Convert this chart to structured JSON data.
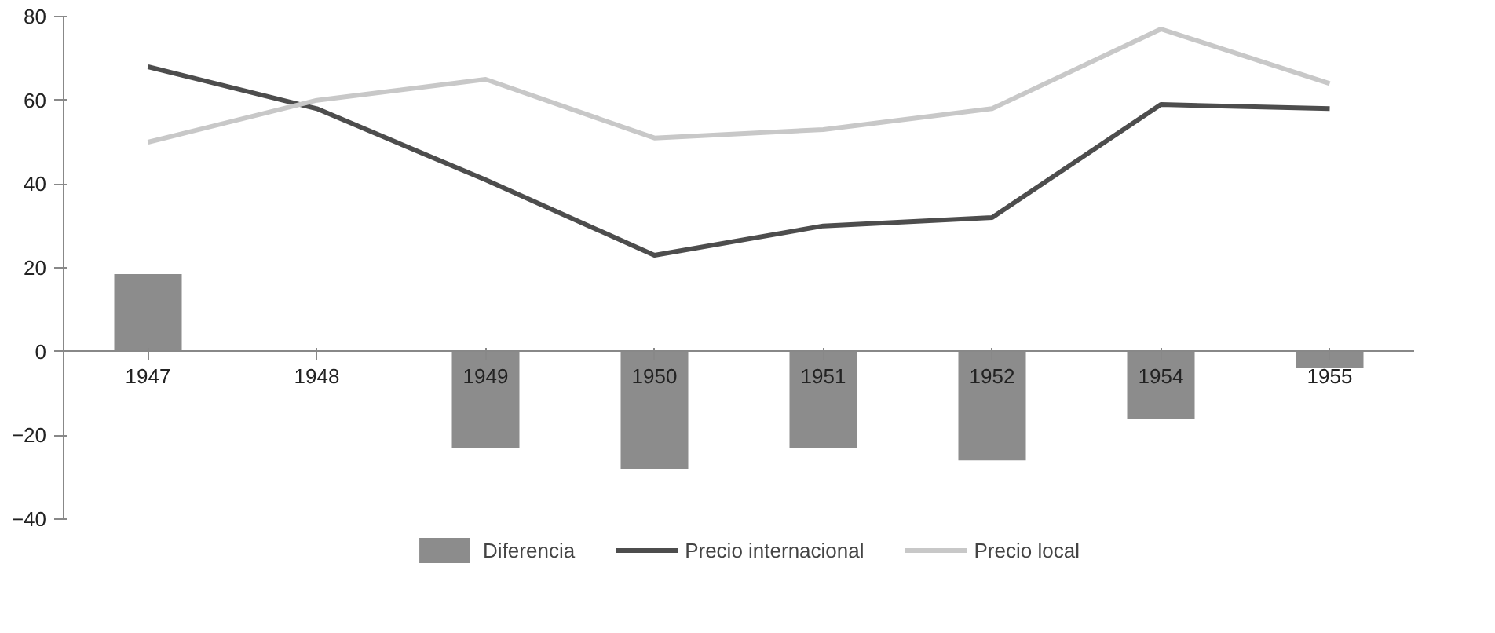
{
  "chart_data": {
    "type": "bar",
    "categories": [
      "1947",
      "1948",
      "1949",
      "1950",
      "1951",
      "1952",
      "1954",
      "1955"
    ],
    "series": [
      {
        "name": "Diferencia",
        "color": "#8c8c8c",
        "values": [
          18.5,
          null,
          -23,
          -28,
          -23,
          -26,
          -16,
          -4
        ]
      },
      {
        "name": "Precio internacional",
        "type": "line",
        "color": "#4d4d4d",
        "values": [
          68,
          58,
          41,
          23,
          30,
          32,
          59,
          58
        ]
      },
      {
        "name": "Precio local",
        "type": "line",
        "color": "#c8c8c8",
        "values": [
          50,
          60,
          65,
          51,
          53,
          58,
          77,
          64
        ]
      }
    ],
    "ylim": [
      -40,
      80
    ],
    "yticks": [
      -40,
      -20,
      0,
      20,
      40,
      60,
      80
    ],
    "grid": false,
    "legend": "bottom",
    "marker": "none",
    "line_style": "solid"
  }
}
